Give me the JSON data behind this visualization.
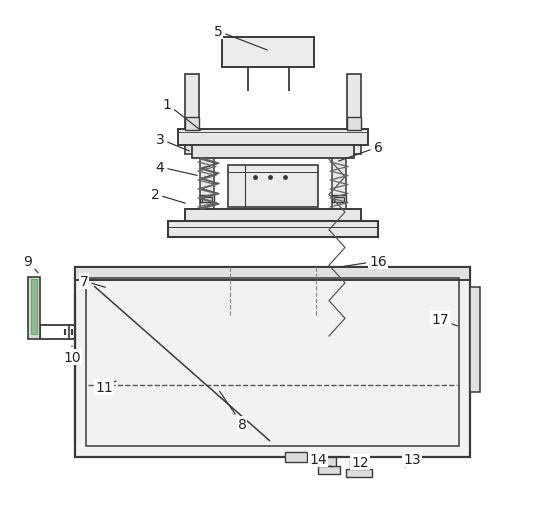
{
  "bg_color": "#ffffff",
  "line_color": "#3a3a3a",
  "figsize": [
    5.46,
    5.1
  ],
  "dpi": 100,
  "label_fontsize": 10,
  "label_color": "#222222",
  "labels_data": [
    [
      "5",
      218,
      32,
      270,
      52
    ],
    [
      "1",
      167,
      105,
      203,
      133
    ],
    [
      "3",
      160,
      140,
      192,
      153
    ],
    [
      "4",
      160,
      168,
      200,
      177
    ],
    [
      "2",
      155,
      195,
      188,
      205
    ],
    [
      "6",
      378,
      148,
      336,
      163
    ],
    [
      "7",
      84,
      282,
      108,
      289
    ],
    [
      "16",
      378,
      262,
      340,
      268
    ],
    [
      "17",
      440,
      320,
      460,
      328
    ],
    [
      "9",
      28,
      262,
      40,
      276
    ],
    [
      "10",
      72,
      358,
      72,
      344
    ],
    [
      "11",
      104,
      388,
      116,
      382
    ],
    [
      "8",
      242,
      425,
      218,
      390
    ],
    [
      "14",
      318,
      460,
      332,
      468
    ],
    [
      "12",
      360,
      463,
      368,
      468
    ],
    [
      "13",
      412,
      460,
      405,
      468
    ]
  ]
}
